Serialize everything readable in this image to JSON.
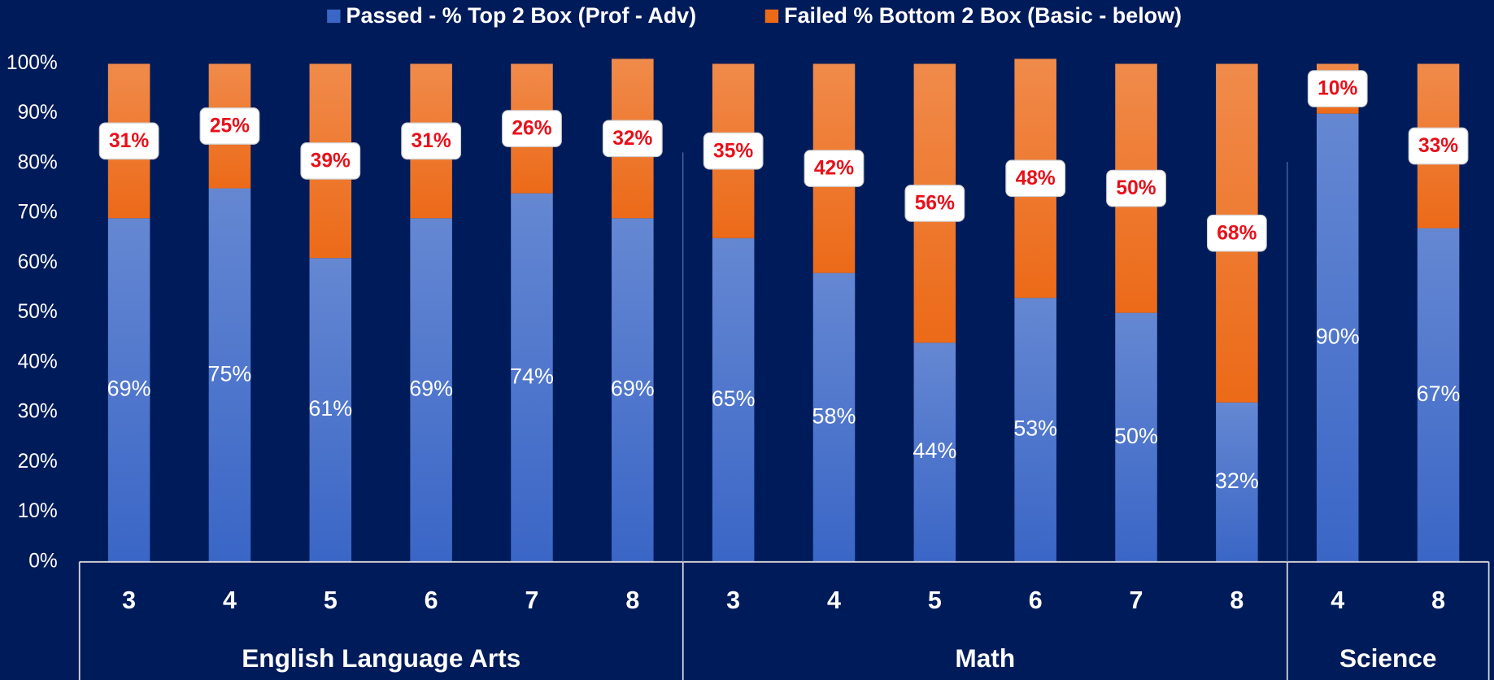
{
  "chart_data": {
    "type": "stacked-bar",
    "categories": [
      "3",
      "4",
      "5",
      "6",
      "7",
      "8",
      "3",
      "4",
      "5",
      "6",
      "7",
      "8",
      "4",
      "8"
    ],
    "groups": [
      {
        "name": "English Language Arts",
        "categories": [
          "3",
          "4",
          "5",
          "6",
          "7",
          "8"
        ]
      },
      {
        "name": "Math",
        "categories": [
          "3",
          "4",
          "5",
          "6",
          "7",
          "8"
        ]
      },
      {
        "name": "Science",
        "categories": [
          "4",
          "8"
        ]
      }
    ],
    "series": [
      {
        "name": "Passed - % Top 2 Box (Prof - Adv)",
        "color": "#3a66c6",
        "values": [
          69,
          75,
          61,
          69,
          74,
          69,
          65,
          58,
          44,
          53,
          50,
          32,
          90,
          67
        ],
        "value_labels": [
          "69%",
          "75%",
          "61%",
          "69%",
          "74%",
          "69%",
          "65%",
          "58%",
          "44%",
          "53%",
          "50%",
          "32%",
          "90%",
          "67%"
        ]
      },
      {
        "name": "Failed % Bottom 2 Box (Basic - below)",
        "color": "#ec6a18",
        "values": [
          31,
          25,
          39,
          31,
          26,
          32,
          35,
          42,
          56,
          48,
          50,
          68,
          10,
          33
        ],
        "value_labels": [
          "31%",
          "25%",
          "39%",
          "31%",
          "26%",
          "32%",
          "35%",
          "42%",
          "56%",
          "48%",
          "50%",
          "68%",
          "10%",
          "33%"
        ]
      }
    ],
    "ylim": [
      0,
      100
    ],
    "yticks": [
      {
        "value": 0,
        "label": "0%"
      },
      {
        "value": 10,
        "label": "10%"
      },
      {
        "value": 20,
        "label": "20%"
      },
      {
        "value": 30,
        "label": "30%"
      },
      {
        "value": 40,
        "label": "40%"
      },
      {
        "value": 50,
        "label": "50%"
      },
      {
        "value": 60,
        "label": "60%"
      },
      {
        "value": 70,
        "label": "70%"
      },
      {
        "value": 80,
        "label": "80%"
      },
      {
        "value": 90,
        "label": "90%"
      },
      {
        "value": 100,
        "label": "100%"
      }
    ],
    "legend": "top"
  }
}
